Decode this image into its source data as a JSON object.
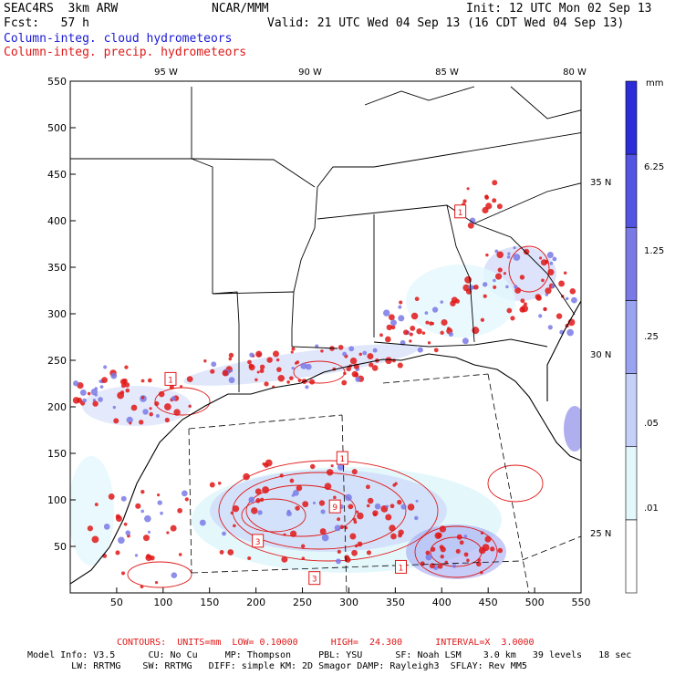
{
  "header": {
    "model": "SEAC4RS  3km ARW",
    "org": "NCAR/MMM",
    "init": "Init: 12 UTC Mon 02 Sep 13",
    "fcst": "Fcst:   57 h",
    "valid": "Valid: 21 UTC Wed 04 Sep 13 (16 CDT Wed 04 Sep 13)",
    "cloud_label": "Column-integ. cloud hydrometeors",
    "precip_label": "Column-integ. precip. hydrometeors"
  },
  "colors": {
    "cloud": "#1a1ad6",
    "precip": "#e01818",
    "colorbar": [
      "#ffffff",
      "#e4f8fc",
      "#c4d0f8",
      "#9aa2f2",
      "#7a7ae6",
      "#5454e2",
      "#2c2cd8"
    ]
  },
  "map": {
    "top_lon_labels": [
      "95 W",
      "90 W",
      "85 W",
      "80 W"
    ],
    "right_lat_labels": [
      "35 N",
      "30 N",
      "25 N"
    ],
    "x_ticks": [
      50,
      100,
      150,
      200,
      250,
      300,
      350,
      400,
      450,
      500,
      550
    ],
    "y_ticks": [
      50,
      100,
      150,
      200,
      250,
      300,
      350,
      400,
      450,
      500,
      550
    ],
    "xlim": [
      0,
      550
    ],
    "ylim": [
      0,
      550
    ],
    "contour_markers": [
      {
        "x": 108,
        "y": 230,
        "label": "1"
      },
      {
        "x": 420,
        "y": 410,
        "label": "1"
      },
      {
        "x": 293,
        "y": 145,
        "label": "1"
      },
      {
        "x": 202,
        "y": 56,
        "label": "3"
      },
      {
        "x": 285,
        "y": 93,
        "label": "9"
      },
      {
        "x": 356,
        "y": 28,
        "label": "1"
      },
      {
        "x": 263,
        "y": 16,
        "label": "3"
      }
    ]
  },
  "colorbar": {
    "unit": "mm",
    "labels": [
      "6.25",
      "1.25",
      ".25",
      ".05",
      ".01"
    ]
  },
  "footer": {
    "contours": "CONTOURS:  UNITS=mm  LOW= 0.10000      HIGH=  24.300      INTERVAL=X  3.0000",
    "line1": "Model Info: V3.5      CU: No Cu     MP: Thompson     PBL: YSU      SF: Noah LSM    3.0 km   39 levels   18 sec",
    "line2": "        LW: RRTMG    SW: RRTMG   DIFF: simple KM: 2D Smagor DAMP: Rayleigh3  SFLAY: Rev MM5"
  }
}
